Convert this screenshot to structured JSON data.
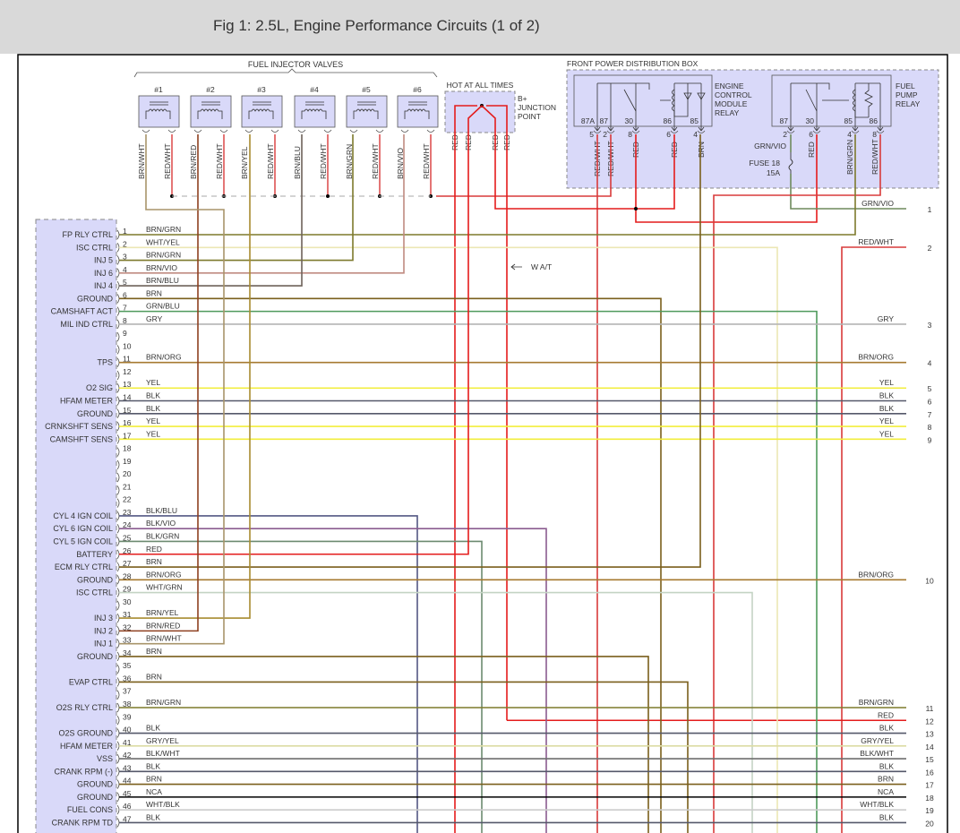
{
  "header": {
    "title": "Fig 1: 2.5L, Engine Performance Circuits (1 of 2)"
  },
  "injectors": {
    "group_label": "FUEL INJECTOR VALVES",
    "items": [
      {
        "label": "#1",
        "wires": [
          "BRN/WHT",
          "RED/WHT"
        ]
      },
      {
        "label": "#2",
        "wires": [
          "BRN/RED",
          "RED/WHT"
        ]
      },
      {
        "label": "#3",
        "wires": [
          "BRN/YEL",
          "RED/WHT"
        ]
      },
      {
        "label": "#4",
        "wires": [
          "BRN/BLU",
          "RED/WHT"
        ]
      },
      {
        "label": "#5",
        "wires": [
          "BRN/GRN",
          "RED/WHT"
        ]
      },
      {
        "label": "#6",
        "wires": [
          "BRN/VIO",
          "RED/WHT"
        ]
      }
    ]
  },
  "junction": {
    "title": "HOT AT ALL TIMES",
    "label_lines": [
      "B+",
      "JUNCTION",
      "POINT"
    ],
    "wires": [
      "RED",
      "RED",
      "RED",
      "RED"
    ]
  },
  "pdb": {
    "title": "FRONT POWER DISTRIBUTION BOX",
    "ecm_relay": {
      "name_lines": [
        "ENGINE",
        "CONTROL",
        "MODULE",
        "RELAY"
      ],
      "terminals": [
        "87A",
        "87",
        "30",
        "86",
        "85"
      ],
      "pins": [
        "5",
        "2",
        "8",
        "6",
        "4"
      ],
      "wires": [
        "RED/WHT",
        "RED/WHT",
        "RED",
        "RED",
        "BRN"
      ]
    },
    "fp_relay": {
      "name_lines": [
        "FUEL",
        "PUMP",
        "RELAY"
      ],
      "terminals": [
        "87",
        "30",
        "85",
        "86"
      ],
      "pins": [
        "2",
        "6",
        "4",
        "8"
      ],
      "wires": [
        "GRN/VIO",
        "RED",
        "BRN/GRN",
        "RED/WHT"
      ]
    },
    "fuse": {
      "name": "FUSE 18",
      "rating": "15A"
    }
  },
  "wat_label": "W A/T",
  "ecm_connector": {
    "pins": [
      {
        "num": "1",
        "label": "FP RLY CTRL",
        "wire": "BRN/GRN"
      },
      {
        "num": "2",
        "label": "ISC CTRL",
        "wire": "WHT/YEL"
      },
      {
        "num": "3",
        "label": "INJ 5",
        "wire": "BRN/GRN"
      },
      {
        "num": "4",
        "label": "INJ 6",
        "wire": "BRN/VIO"
      },
      {
        "num": "5",
        "label": "INJ 4",
        "wire": "BRN/BLU"
      },
      {
        "num": "6",
        "label": "GROUND",
        "wire": "BRN"
      },
      {
        "num": "7",
        "label": "CAMSHAFT ACT",
        "wire": "GRN/BLU"
      },
      {
        "num": "8",
        "label": "MIL IND CTRL",
        "wire": "GRY"
      },
      {
        "num": "9",
        "label": "",
        "wire": ""
      },
      {
        "num": "10",
        "label": "",
        "wire": ""
      },
      {
        "num": "11",
        "label": "TPS",
        "wire": "BRN/ORG"
      },
      {
        "num": "12",
        "label": "",
        "wire": ""
      },
      {
        "num": "13",
        "label": "O2 SIG",
        "wire": "YEL"
      },
      {
        "num": "14",
        "label": "HFAM METER",
        "wire": "BLK"
      },
      {
        "num": "15",
        "label": "GROUND",
        "wire": "BLK"
      },
      {
        "num": "16",
        "label": "CRNKSHFT SENS",
        "wire": "YEL"
      },
      {
        "num": "17",
        "label": "CAMSHFT SENS",
        "wire": "YEL"
      },
      {
        "num": "18",
        "label": "",
        "wire": ""
      },
      {
        "num": "19",
        "label": "",
        "wire": ""
      },
      {
        "num": "20",
        "label": "",
        "wire": ""
      },
      {
        "num": "21",
        "label": "",
        "wire": ""
      },
      {
        "num": "22",
        "label": "",
        "wire": ""
      },
      {
        "num": "23",
        "label": "CYL 4 IGN COIL",
        "wire": "BLK/BLU"
      },
      {
        "num": "24",
        "label": "CYL 6 IGN COIL",
        "wire": "BLK/VIO"
      },
      {
        "num": "25",
        "label": "CYL 5 IGN COIL",
        "wire": "BLK/GRN"
      },
      {
        "num": "26",
        "label": "BATTERY",
        "wire": "RED"
      },
      {
        "num": "27",
        "label": "ECM RLY CTRL",
        "wire": "BRN"
      },
      {
        "num": "28",
        "label": "GROUND",
        "wire": "BRN/ORG"
      },
      {
        "num": "29",
        "label": "ISC CTRL",
        "wire": "WHT/GRN"
      },
      {
        "num": "30",
        "label": "",
        "wire": ""
      },
      {
        "num": "31",
        "label": "INJ 3",
        "wire": "BRN/YEL"
      },
      {
        "num": "32",
        "label": "INJ 2",
        "wire": "BRN/RED"
      },
      {
        "num": "33",
        "label": "INJ 1",
        "wire": "BRN/WHT"
      },
      {
        "num": "34",
        "label": "GROUND",
        "wire": "BRN"
      },
      {
        "num": "35",
        "label": "",
        "wire": ""
      },
      {
        "num": "36",
        "label": "EVAP CTRL",
        "wire": "BRN"
      },
      {
        "num": "37",
        "label": "",
        "wire": ""
      },
      {
        "num": "38",
        "label": "O2S RLY CTRL",
        "wire": "BRN/GRN"
      },
      {
        "num": "39",
        "label": "",
        "wire": ""
      },
      {
        "num": "40",
        "label": "O2S GROUND",
        "wire": "BLK"
      },
      {
        "num": "41",
        "label": "HFAM METER",
        "wire": "GRY/YEL"
      },
      {
        "num": "42",
        "label": "VSS",
        "wire": "BLK/WHT"
      },
      {
        "num": "43",
        "label": "CRANK RPM (-)",
        "wire": "BLK"
      },
      {
        "num": "44",
        "label": "GROUND",
        "wire": "BRN"
      },
      {
        "num": "45",
        "label": "GROUND",
        "wire": "NCA"
      },
      {
        "num": "46",
        "label": "FUEL CONS",
        "wire": "WHT/BLK"
      },
      {
        "num": "47",
        "label": "CRANK RPM TD",
        "wire": "BLK"
      }
    ]
  },
  "right_connector": [
    {
      "num": "1",
      "wire": "GRN/VIO"
    },
    {
      "num": "2",
      "wire": "RED/WHT"
    },
    {
      "num": "3",
      "wire": "GRY"
    },
    {
      "num": "4",
      "wire": "BRN/ORG"
    },
    {
      "num": "5",
      "wire": "YEL"
    },
    {
      "num": "6",
      "wire": "BLK"
    },
    {
      "num": "7",
      "wire": "BLK"
    },
    {
      "num": "8",
      "wire": "YEL"
    },
    {
      "num": "9",
      "wire": "YEL"
    },
    {
      "num": "10",
      "wire": "BRN/ORG"
    },
    {
      "num": "11",
      "wire": "BRN/GRN"
    },
    {
      "num": "12",
      "wire": "RED"
    },
    {
      "num": "13",
      "wire": "BLK"
    },
    {
      "num": "14",
      "wire": "GRY/YEL"
    },
    {
      "num": "15",
      "wire": "BLK/WHT"
    },
    {
      "num": "16",
      "wire": "BLK"
    },
    {
      "num": "17",
      "wire": "BRN"
    },
    {
      "num": "18",
      "wire": "NCA"
    },
    {
      "num": "19",
      "wire": "WHT/BLK"
    },
    {
      "num": "20",
      "wire": "BLK"
    }
  ],
  "wire_colors": {
    "BRN/GRN": "#7d7a2c",
    "WHT/YEL": "#ece7b4",
    "BRN/VIO": "#c08a80",
    "BRN/BLU": "#6e625a",
    "BRN": "#7a5f1c",
    "GRN/BLU": "#4f9a5c",
    "GRY": "#b4b4b4",
    "BRN/ORG": "#a67a30",
    "YEL": "#f2ee3c",
    "BLK": "#55586a",
    "BLK/BLU": "#545884",
    "BLK/VIO": "#8a5c90",
    "BLK/GRN": "#6c8a70",
    "RED": "#e41c1c",
    "WHT/GRN": "#c4d4c4",
    "BRN/YEL": "#a88c30",
    "BRN/RED": "#8e4020",
    "BRN/WHT": "#a8946a",
    "GRY/YEL": "#dcdca4",
    "BLK/WHT": "#6e6e6e",
    "NCA": "#000000",
    "WHT/BLK": "#cccccc",
    "RED/WHT": "#d83a3a",
    "GRN/VIO": "#6e8a5c"
  },
  "box_fill": "#d9d9f9"
}
